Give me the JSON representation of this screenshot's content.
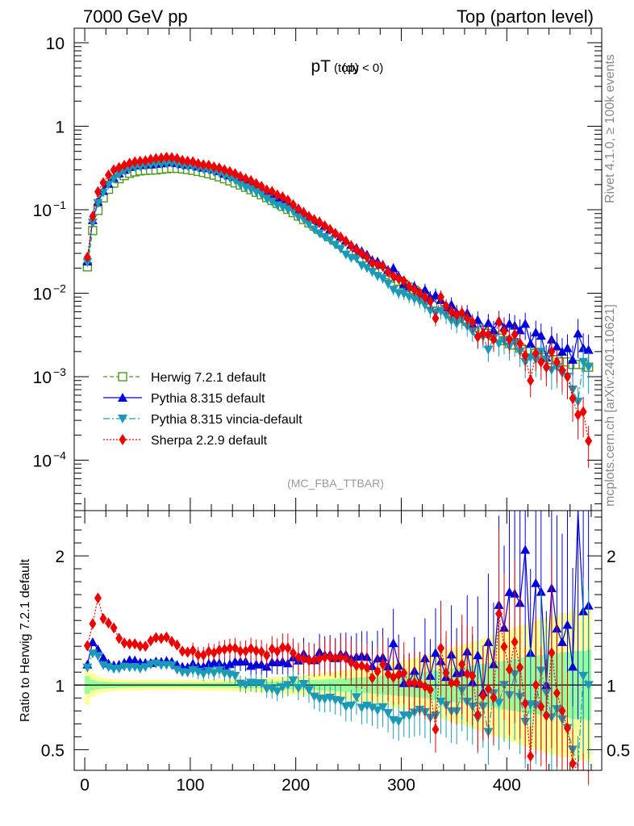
{
  "header": {
    "left_title": "7000 GeV pp",
    "right_title": "Top (parton level)",
    "side_top": "Rivet 4.1.0, ≥ 100k events",
    "side_bottom": "mcplots.cern.ch [arXiv:2401.10621]"
  },
  "colors": {
    "herwig": "#4a9a1e",
    "pythia": "#0000dd",
    "vincia": "#1a9ab8",
    "sherpa": "#ee0000",
    "band_yellow": "#ffff99",
    "band_green": "#99ff99"
  },
  "chart_data": [
    {
      "type": "scatter",
      "title": "pT",
      "title_sub": "(top)",
      "title_cond": "(dy < 0)",
      "analysis_tag": "(MC_FBA_TTBAR)",
      "yscale": "log",
      "ylim": [
        3e-05,
        14
      ],
      "xlim": [
        -10,
        490
      ],
      "y_ticks": [
        {
          "value": 10,
          "base": "10",
          "exp": ""
        },
        {
          "value": 1,
          "base": "1",
          "exp": ""
        },
        {
          "value": 0.1,
          "base": "10",
          "exp": "−1"
        },
        {
          "value": 0.01,
          "base": "10",
          "exp": "−2"
        },
        {
          "value": 0.001,
          "base": "10",
          "exp": "−3"
        },
        {
          "value": 0.0001,
          "base": "10",
          "exp": "−4"
        }
      ],
      "legend": {
        "placement": "bottom-left",
        "entries": [
          "Herwig 7.2.1 default",
          "Pythia 8.315 default",
          "Pythia 8.315 vincia-default",
          "Sherpa 2.2.9 default"
        ]
      },
      "x": [
        2.5,
        7.5,
        12.5,
        17.5,
        22.5,
        27.5,
        32.5,
        37.5,
        42.5,
        47.5,
        52.5,
        57.5,
        62.5,
        67.5,
        72.5,
        77.5,
        82.5,
        87.5,
        92.5,
        97.5,
        102.5,
        107.5,
        112.5,
        117.5,
        122.5,
        127.5,
        132.5,
        137.5,
        142.5,
        147.5,
        152.5,
        157.5,
        162.5,
        167.5,
        172.5,
        177.5,
        182.5,
        187.5,
        192.5,
        197.5,
        202.5,
        207.5,
        212.5,
        217.5,
        222.5,
        227.5,
        232.5,
        237.5,
        242.5,
        247.5,
        252.5,
        257.5,
        262.5,
        267.5,
        272.5,
        277.5,
        282.5,
        287.5,
        292.5,
        297.5,
        302.5,
        307.5,
        312.5,
        317.5,
        322.5,
        327.5,
        332.5,
        337.5,
        342.5,
        347.5,
        352.5,
        357.5,
        362.5,
        367.5,
        372.5,
        377.5,
        382.5,
        387.5,
        392.5,
        397.5,
        402.5,
        407.5,
        412.5,
        417.5,
        422.5,
        427.5,
        432.5,
        437.5,
        442.5,
        447.5,
        452.5,
        457.5,
        462.5,
        467.5,
        472.5,
        477.5
      ],
      "series": [
        {
          "name": "Herwig 7.2.1 default",
          "key": "herwig",
          "marker": "open-square",
          "dash": "5,3",
          "values": [
            0.0207,
            0.0563,
            0.098,
            0.1387,
            0.1757,
            0.208,
            0.235,
            0.2565,
            0.273,
            0.2845,
            0.292,
            0.296,
            0.298,
            0.3,
            0.305,
            0.31,
            0.314,
            0.313,
            0.309,
            0.303,
            0.296,
            0.288,
            0.28,
            0.27,
            0.26,
            0.248,
            0.235,
            0.222,
            0.21,
            0.198,
            0.186,
            0.174,
            0.162,
            0.151,
            0.14,
            0.129,
            0.119,
            0.11,
            0.101,
            0.0922,
            0.084,
            0.0764,
            0.0697,
            0.0637,
            0.0581,
            0.0527,
            0.0477,
            0.043,
            0.0387,
            0.0348,
            0.0315,
            0.0287,
            0.0261,
            0.0238,
            0.0218,
            0.0199,
            0.0181,
            0.0166,
            0.0151,
            0.0139,
            0.0128,
            0.0118,
            0.0108,
            0.0099,
            0.0091,
            0.0083,
            0.0076,
            0.007,
            0.0064,
            0.0059,
            0.0054,
            0.005,
            0.0046,
            0.0042,
            0.0039,
            0.0036,
            0.0033,
            0.0031,
            0.0029,
            0.0027,
            0.0025,
            0.0024,
            0.0022,
            0.0021,
            0.002,
            0.0019,
            0.0018,
            0.0017,
            0.0016,
            0.0016,
            0.0015,
            0.0015,
            0.0014,
            0.0014,
            0.0014,
            0.0013
          ]
        },
        {
          "name": "Pythia 8.315 default",
          "key": "pythia",
          "marker": "triangle-up",
          "dash": "",
          "values": [
            0.024,
            0.075,
            0.125,
            0.168,
            0.205,
            0.24,
            0.272,
            0.301,
            0.326,
            0.339,
            0.343,
            0.347,
            0.349,
            0.355,
            0.36,
            0.368,
            0.371,
            0.362,
            0.353,
            0.345,
            0.345,
            0.33,
            0.32,
            0.315,
            0.305,
            0.29,
            0.27,
            0.258,
            0.248,
            0.234,
            0.22,
            0.2,
            0.188,
            0.175,
            0.16,
            0.152,
            0.14,
            0.13,
            0.118,
            0.112,
            0.1,
            0.095,
            0.084,
            0.076,
            0.073,
            0.065,
            0.059,
            0.052,
            0.048,
            0.043,
            0.038,
            0.035,
            0.032,
            0.029,
            0.025,
            0.024,
            0.022,
            0.019,
            0.02,
            0.016,
            0.013,
            0.012,
            0.012,
            0.01,
            0.011,
            0.0089,
            0.0095,
            0.0083,
            0.0068,
            0.0073,
            0.0059,
            0.0055,
            0.0058,
            0.0043,
            0.0048,
            0.0034,
            0.0044,
            0.0036,
            0.0047,
            0.0039,
            0.0043,
            0.0041,
            0.0036,
            0.0043,
            0.0025,
            0.0034,
            0.0031,
            0.0017,
            0.0028,
            0.0023,
            0.002,
            0.0022,
            0.0016,
            0.0033,
            0.0022,
            0.0021
          ]
        },
        {
          "name": "Pythia 8.315 vincia-default",
          "key": "vincia",
          "marker": "triangle-down",
          "dash": "8,3,2,3",
          "values": [
            0.0235,
            0.07,
            0.12,
            0.16,
            0.2,
            0.234,
            0.265,
            0.293,
            0.31,
            0.324,
            0.329,
            0.337,
            0.345,
            0.35,
            0.352,
            0.358,
            0.362,
            0.35,
            0.34,
            0.332,
            0.33,
            0.317,
            0.304,
            0.299,
            0.284,
            0.276,
            0.256,
            0.24,
            0.225,
            0.2,
            0.186,
            0.177,
            0.164,
            0.153,
            0.136,
            0.125,
            0.113,
            0.108,
            0.101,
            0.0955,
            0.082,
            0.077,
            0.067,
            0.058,
            0.052,
            0.047,
            0.043,
            0.038,
            0.034,
            0.029,
            0.0265,
            0.026,
            0.0215,
            0.02,
            0.018,
            0.016,
            0.015,
            0.013,
            0.011,
            0.01,
            0.0098,
            0.009,
            0.0085,
            0.008,
            0.0072,
            0.0062,
            0.0058,
            0.0061,
            0.0054,
            0.0047,
            0.0043,
            0.0048,
            0.004,
            0.0035,
            0.0029,
            0.003,
            0.0021,
            0.0029,
            0.0025,
            0.0027,
            0.0023,
            0.0026,
            0.002,
            0.0015,
            0.0017,
            0.0016,
            0.002,
            0.0016,
            0.0012,
            0.0013,
            0.0011,
            0.001,
            0.0007,
            0.0005,
            0.0015,
            0.0013
          ]
        },
        {
          "name": "Sherpa 2.2.9 default",
          "key": "sherpa",
          "marker": "diamond",
          "dash": "2,2",
          "values": [
            0.027,
            0.083,
            0.164,
            0.21,
            0.26,
            0.3,
            0.32,
            0.34,
            0.36,
            0.375,
            0.38,
            0.385,
            0.4,
            0.41,
            0.415,
            0.425,
            0.42,
            0.41,
            0.39,
            0.38,
            0.375,
            0.355,
            0.345,
            0.34,
            0.325,
            0.315,
            0.3,
            0.285,
            0.27,
            0.25,
            0.235,
            0.223,
            0.205,
            0.19,
            0.172,
            0.165,
            0.15,
            0.142,
            0.13,
            0.115,
            0.102,
            0.092,
            0.083,
            0.076,
            0.07,
            0.064,
            0.058,
            0.052,
            0.047,
            0.042,
            0.037,
            0.033,
            0.03,
            0.027,
            0.023,
            0.022,
            0.021,
            0.018,
            0.016,
            0.015,
            0.014,
            0.012,
            0.011,
            0.01,
            0.009,
            0.008,
            0.005,
            0.009,
            0.007,
            0.006,
            0.0055,
            0.0058,
            0.005,
            0.0045,
            0.003,
            0.0033,
            0.0032,
            0.0028,
            0.0045,
            0.0035,
            0.0028,
            0.0032,
            0.0025,
            0.0018,
            0.0009,
            0.0019,
            0.0015,
            0.0013,
            0.002,
            0.0015,
            0.0012,
            0.001,
            0.00055,
            0.00035,
            0.00038,
            0.00017
          ]
        }
      ]
    },
    {
      "type": "scatter",
      "title": "Ratio to Herwig 7.2.1 default",
      "ylabel": "Ratio to Herwig 7.2.1 default",
      "xlabel": "",
      "ylim": [
        0.34,
        2.35
      ],
      "xlim": [
        -10,
        490
      ],
      "y_ticks": [
        0.5,
        1,
        2
      ],
      "y_tick_labels": [
        "0.5",
        "1",
        "2"
      ],
      "x_ticks": [
        0,
        100,
        200,
        300,
        400
      ],
      "x_tick_labels": [
        "0",
        "100",
        "200",
        "300",
        "400"
      ]
    }
  ]
}
